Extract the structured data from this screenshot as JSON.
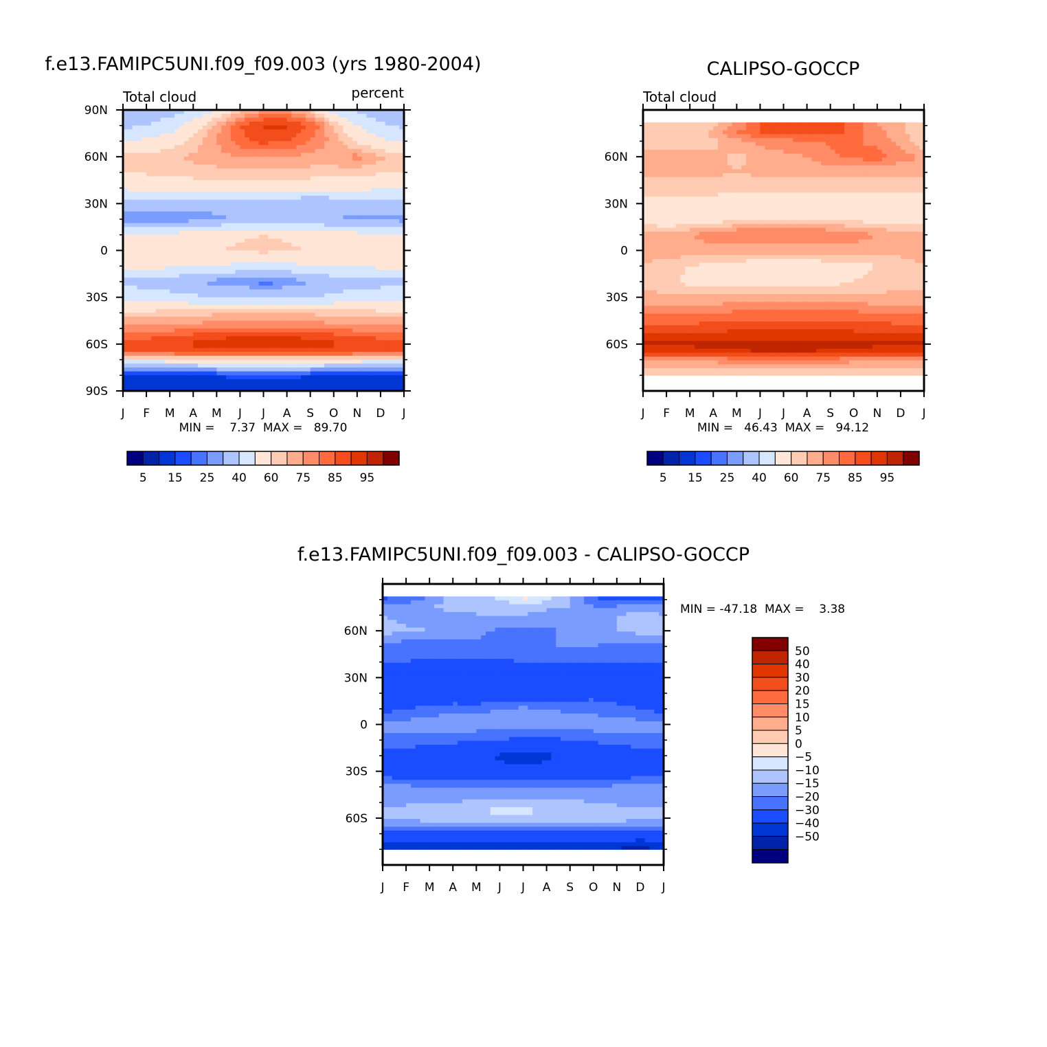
{
  "chart_data": [
    {
      "type": "heatmap",
      "id": "model",
      "title": "f.e13.FAMIPC5UNI.f09_f09.003 (yrs 1980-2004)",
      "left_label": "Total cloud",
      "right_label": "percent",
      "stats": "MIN =    7.37  MAX =   89.70",
      "x_ticks": [
        "J",
        "F",
        "M",
        "A",
        "M",
        "J",
        "J",
        "A",
        "S",
        "O",
        "N",
        "D",
        "J"
      ],
      "y_ticks": [
        "90N",
        "60N",
        "30N",
        "0",
        "30S",
        "60S",
        "90S"
      ],
      "y_range": [
        -90,
        90
      ],
      "data_lat_range": [
        -90,
        90
      ],
      "levels": [
        5,
        10,
        15,
        20,
        25,
        30,
        40,
        50,
        60,
        65,
        70,
        75,
        80,
        85,
        90,
        95
      ],
      "colorbar_labels": [
        "5",
        "15",
        "25",
        "40",
        "60",
        "75",
        "85",
        "95"
      ],
      "lat": [
        90,
        80,
        70,
        60,
        50,
        40,
        30,
        20,
        10,
        0,
        -10,
        -20,
        -30,
        -40,
        -50,
        -55,
        -60,
        -65,
        -70,
        -75,
        -80,
        -90
      ],
      "values": [
        [
          32,
          33,
          35,
          40,
          50,
          62,
          70,
          70,
          62,
          45,
          38,
          34,
          32
        ],
        [
          38,
          40,
          45,
          55,
          68,
          80,
          86,
          86,
          80,
          65,
          50,
          42,
          38
        ],
        [
          48,
          52,
          56,
          62,
          70,
          78,
          82,
          80,
          75,
          68,
          58,
          52,
          48
        ],
        [
          62,
          63,
          64,
          66,
          68,
          70,
          70,
          70,
          68,
          68,
          72,
          66,
          62
        ],
        [
          60,
          61,
          62,
          63,
          63,
          64,
          64,
          64,
          63,
          63,
          62,
          61,
          60
        ],
        [
          52,
          53,
          54,
          55,
          56,
          57,
          57,
          57,
          55,
          54,
          53,
          52,
          52
        ],
        [
          35,
          34,
          33,
          32,
          32,
          33,
          33,
          32,
          30,
          32,
          33,
          34,
          35
        ],
        [
          25,
          24,
          25,
          27,
          29,
          31,
          32,
          32,
          31,
          30,
          29,
          28,
          27
        ],
        [
          50,
          51,
          52,
          55,
          57,
          59,
          60,
          59,
          57,
          55,
          53,
          51,
          50
        ],
        [
          56,
          57,
          58,
          59,
          60,
          61,
          62,
          61,
          60,
          59,
          58,
          57,
          56
        ],
        [
          53,
          53,
          52,
          50,
          49,
          48,
          48,
          48,
          49,
          50,
          51,
          52,
          53
        ],
        [
          38,
          37,
          35,
          30,
          27,
          26,
          22,
          25,
          30,
          35,
          36,
          37,
          38
        ],
        [
          45,
          44,
          43,
          42,
          40,
          39,
          38,
          39,
          40,
          42,
          44,
          45,
          45
        ],
        [
          62,
          62,
          63,
          63,
          64,
          64,
          64,
          64,
          64,
          63,
          63,
          62,
          62
        ],
        [
          72,
          72,
          73,
          74,
          74,
          75,
          75,
          75,
          74,
          74,
          73,
          72,
          72
        ],
        [
          78,
          78,
          80,
          82,
          84,
          85,
          85,
          85,
          84,
          82,
          80,
          78,
          78
        ],
        [
          84,
          84,
          85,
          86,
          87,
          87,
          87,
          87,
          86,
          86,
          85,
          84,
          84
        ],
        [
          80,
          80,
          81,
          82,
          83,
          83,
          83,
          83,
          82,
          82,
          81,
          80,
          80
        ],
        [
          55,
          55,
          56,
          57,
          58,
          58,
          58,
          58,
          57,
          57,
          56,
          55,
          55
        ],
        [
          32,
          32,
          33,
          34,
          35,
          36,
          36,
          36,
          35,
          34,
          33,
          32,
          32
        ],
        [
          15,
          14,
          14,
          15,
          15,
          16,
          16,
          16,
          15,
          14,
          14,
          15,
          15
        ],
        [
          10,
          10,
          11,
          12,
          12,
          13,
          13,
          13,
          12,
          12,
          11,
          10,
          10
        ]
      ]
    },
    {
      "type": "heatmap",
      "id": "obs",
      "title": "CALIPSO-GOCCP",
      "left_label": "Total cloud",
      "right_label": "",
      "stats": "MIN =   46.43  MAX =   94.12",
      "x_ticks": [
        "J",
        "F",
        "M",
        "A",
        "M",
        "J",
        "J",
        "A",
        "S",
        "O",
        "N",
        "D",
        "J"
      ],
      "y_ticks": [
        "60N",
        "30N",
        "0",
        "30S",
        "60S"
      ],
      "y_range": [
        -90,
        90
      ],
      "data_lat_range": [
        -80,
        82
      ],
      "levels": [
        5,
        10,
        15,
        20,
        25,
        30,
        40,
        50,
        60,
        65,
        70,
        75,
        80,
        85,
        90,
        95
      ],
      "colorbar_labels": [
        "5",
        "15",
        "25",
        "40",
        "60",
        "75",
        "85",
        "95"
      ],
      "lat": [
        82,
        75,
        70,
        60,
        50,
        40,
        30,
        20,
        10,
        0,
        -10,
        -20,
        -30,
        -40,
        -50,
        -55,
        -60,
        -65,
        -70,
        -80
      ],
      "values": [
        [
          62,
          62,
          62,
          63,
          70,
          80,
          82,
          82,
          84,
          78,
          70,
          66,
          62
        ],
        [
          62,
          62,
          63,
          66,
          75,
          80,
          80,
          82,
          82,
          78,
          72,
          66,
          62
        ],
        [
          60,
          61,
          62,
          64,
          68,
          72,
          74,
          74,
          76,
          76,
          73,
          68,
          60
        ],
        [
          70,
          70,
          68,
          66,
          64,
          66,
          68,
          70,
          74,
          76,
          78,
          72,
          70
        ],
        [
          66,
          66,
          66,
          66,
          65,
          66,
          67,
          67,
          66,
          66,
          66,
          66,
          66
        ],
        [
          63,
          63,
          63,
          63,
          62,
          62,
          62,
          62,
          62,
          62,
          62,
          62,
          63
        ],
        [
          56,
          56,
          57,
          56,
          57,
          57,
          57,
          57,
          53,
          52,
          54,
          56,
          56
        ],
        [
          56,
          53,
          54,
          56,
          58,
          59,
          60,
          59,
          59,
          58,
          57,
          56,
          56
        ],
        [
          68,
          68,
          70,
          73,
          76,
          76,
          76,
          76,
          75,
          73,
          70,
          68,
          68
        ],
        [
          68,
          68,
          68,
          67,
          67,
          67,
          67,
          67,
          67,
          67,
          67,
          67,
          68
        ],
        [
          65,
          62,
          60,
          58,
          57,
          56,
          56,
          56,
          57,
          58,
          60,
          62,
          65
        ],
        [
          64,
          62,
          58,
          57,
          57,
          57,
          57,
          57,
          58,
          60,
          62,
          64,
          64
        ],
        [
          66,
          66,
          66,
          66,
          66,
          66,
          66,
          66,
          66,
          66,
          66,
          66,
          66
        ],
        [
          74,
          75,
          75,
          75,
          76,
          77,
          77,
          77,
          76,
          76,
          75,
          75,
          74
        ],
        [
          82,
          82,
          82,
          83,
          84,
          84,
          84,
          84,
          84,
          84,
          83,
          82,
          82
        ],
        [
          86,
          86,
          86,
          87,
          88,
          88,
          88,
          88,
          88,
          87,
          86,
          86,
          86
        ],
        [
          91,
          91,
          91,
          91,
          92,
          92,
          92,
          92,
          92,
          91,
          91,
          91,
          91
        ],
        [
          88,
          88,
          88,
          89,
          89,
          90,
          90,
          90,
          89,
          89,
          88,
          88,
          88
        ],
        [
          72,
          72,
          72,
          72,
          73,
          73,
          73,
          73,
          73,
          72,
          72,
          72,
          72
        ],
        [
          60,
          60,
          60,
          60,
          60,
          60,
          60,
          60,
          60,
          60,
          60,
          60,
          60
        ]
      ]
    },
    {
      "type": "heatmap",
      "id": "diff",
      "title": "f.e13.FAMIPC5UNI.f09_f09.003 - CALIPSO-GOCCP",
      "left_label": "",
      "right_label": "",
      "stats": "MIN = -47.18  MAX =    3.38",
      "x_ticks": [
        "J",
        "F",
        "M",
        "A",
        "M",
        "J",
        "J",
        "A",
        "S",
        "O",
        "N",
        "D",
        "J"
      ],
      "y_ticks": [
        "60N",
        "30N",
        "0",
        "30S",
        "60S"
      ],
      "y_range": [
        -90,
        90
      ],
      "data_lat_range": [
        -80,
        82
      ],
      "levels": [
        -50,
        -40,
        -30,
        -20,
        -15,
        -10,
        -5,
        0,
        5,
        10,
        15,
        20,
        30,
        40,
        50
      ],
      "colorbar_labels": [
        "50",
        "40",
        "30",
        "20",
        "15",
        "10",
        "5",
        "0",
        "−5",
        "−10",
        "−15",
        "−20",
        "−30",
        "−40",
        "−50"
      ],
      "lat": [
        82,
        75,
        70,
        60,
        50,
        40,
        30,
        20,
        10,
        0,
        -10,
        -20,
        -30,
        -40,
        -50,
        -55,
        -60,
        -65,
        -70,
        -75,
        -80
      ],
      "values": [
        [
          -22,
          -20,
          -15,
          -8,
          -8,
          -3,
          2,
          -2,
          -10,
          -20,
          -25,
          -22,
          -22
        ],
        [
          -14,
          -12,
          -10,
          -8,
          -10,
          -9,
          -7,
          -9,
          -10,
          -15,
          -14,
          -12,
          -14
        ],
        [
          -10,
          -12,
          -12,
          -12,
          -10,
          -10,
          -10,
          -12,
          -12,
          -12,
          -10,
          -8,
          -10
        ],
        [
          -8,
          -9,
          -10,
          -12,
          -14,
          -16,
          -16,
          -16,
          -14,
          -12,
          -10,
          -8,
          -8
        ],
        [
          -18,
          -18,
          -18,
          -17,
          -16,
          -16,
          -15,
          -15,
          -15,
          -15,
          -16,
          -18,
          -18
        ],
        [
          -20,
          -20,
          -21,
          -21,
          -21,
          -21,
          -20,
          -20,
          -20,
          -20,
          -20,
          -20,
          -20
        ],
        [
          -26,
          -26,
          -26,
          -27,
          -26,
          -25,
          -25,
          -24,
          -26,
          -24,
          -24,
          -25,
          -26
        ],
        [
          -30,
          -30,
          -29,
          -28,
          -27,
          -26,
          -26,
          -26,
          -24,
          -22,
          -24,
          -26,
          -30
        ],
        [
          -22,
          -20,
          -18,
          -16,
          -17,
          -15,
          -14,
          -15,
          -16,
          -17,
          -18,
          -20,
          -22
        ],
        [
          -14,
          -13,
          -12,
          -12,
          -12,
          -12,
          -12,
          -12,
          -12,
          -12,
          -12,
          -13,
          -14
        ],
        [
          -16,
          -16,
          -17,
          -18,
          -19,
          -20,
          -22,
          -22,
          -20,
          -19,
          -18,
          -16,
          -16
        ],
        [
          -24,
          -24,
          -26,
          -28,
          -29,
          -31,
          -33,
          -31,
          -28,
          -26,
          -25,
          -24,
          -24
        ],
        [
          -24,
          -25,
          -26,
          -27,
          -28,
          -28,
          -28,
          -28,
          -27,
          -26,
          -25,
          -24,
          -24
        ],
        [
          -14,
          -14,
          -15,
          -15,
          -16,
          -16,
          -16,
          -16,
          -15,
          -15,
          -14,
          -14,
          -14
        ],
        [
          -12,
          -11,
          -11,
          -10,
          -9,
          -8,
          -8,
          -8,
          -9,
          -10,
          -11,
          -12,
          -12
        ],
        [
          -8,
          -8,
          -7,
          -6,
          -5,
          -4,
          -4,
          -5,
          -6,
          -7,
          -8,
          -8,
          -8
        ],
        [
          -10,
          -9,
          -8,
          -7,
          -6,
          -6,
          -6,
          -6,
          -7,
          -7,
          -8,
          -9,
          -10
        ],
        [
          -14,
          -13,
          -13,
          -12,
          -12,
          -12,
          -12,
          -12,
          -12,
          -12,
          -13,
          -13,
          -14
        ],
        [
          -22,
          -22,
          -22,
          -22,
          -22,
          -22,
          -22,
          -22,
          -22,
          -22,
          -22,
          -22,
          -22
        ],
        [
          -28,
          -28,
          -28,
          -29,
          -30,
          -30,
          -30,
          -30,
          -30,
          -29,
          -30,
          -32,
          -28
        ],
        [
          -40,
          -40,
          -40,
          -40,
          -40,
          -40,
          -40,
          -40,
          -40,
          -40,
          -42,
          -44,
          -40
        ]
      ]
    }
  ],
  "colors": {
    "model_obs": [
      "#000080",
      "#0023a8",
      "#0036d4",
      "#1a4dff",
      "#4773ff",
      "#7a9cff",
      "#adc4ff",
      "#d6e6ff",
      "#ffe6d6",
      "#ffccb3",
      "#ffad8c",
      "#ff8c66",
      "#ff6b3d",
      "#f24d1a",
      "#e03600",
      "#bf2600",
      "#800000"
    ],
    "diff": [
      "#000080",
      "#0023a8",
      "#0036d4",
      "#1a4dff",
      "#4773ff",
      "#7a9cff",
      "#adc4ff",
      "#d6e6ff",
      "#ffe6d6",
      "#ffccb3",
      "#ffad8c",
      "#ff8c66",
      "#ff6b3d",
      "#f24d1a",
      "#e03600",
      "#bf2600",
      "#800000"
    ]
  }
}
